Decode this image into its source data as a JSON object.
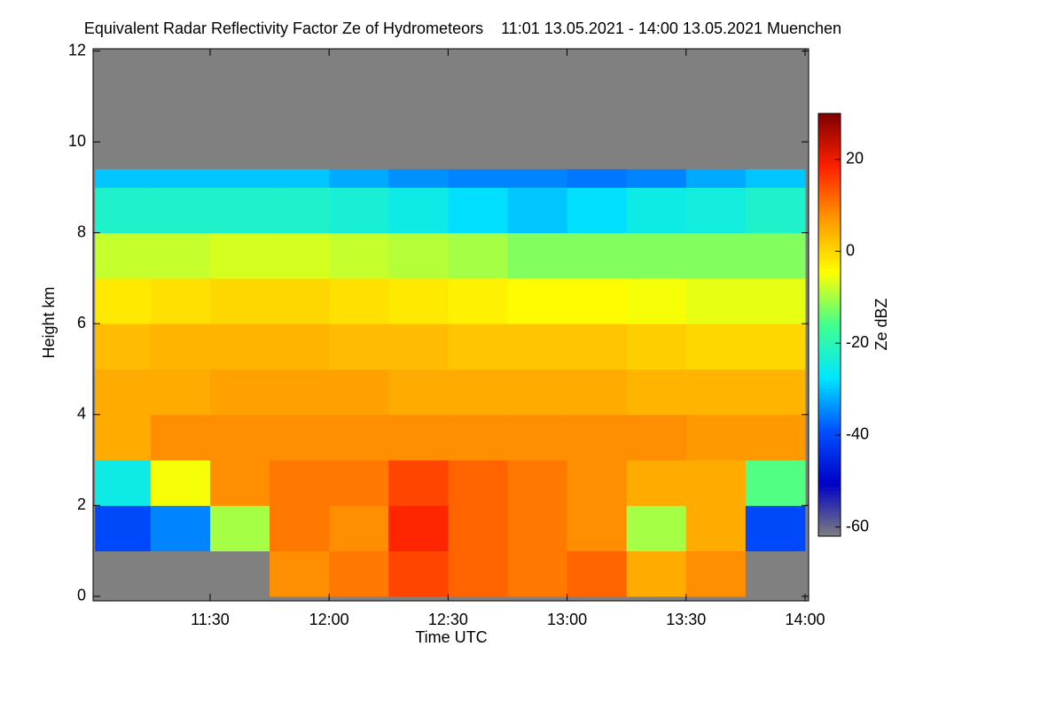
{
  "chart_data": {
    "type": "heatmap",
    "title": "Equivalent Radar Reflectivity Factor Ze of Hydrometeors    11:01 13.05.2021 - 14:00 13.05.2021 Muenchen",
    "xlabel": "Time UTC",
    "ylabel": "Height km",
    "colorbar_label": "Ze dBZ",
    "xlim": [
      660.5,
      840.9
    ],
    "xticks": [
      {
        "value": 690,
        "label": "11:30"
      },
      {
        "value": 720,
        "label": "12:00"
      },
      {
        "value": 750,
        "label": "12:30"
      },
      {
        "value": 780,
        "label": "13:00"
      },
      {
        "value": 810,
        "label": "13:30"
      },
      {
        "value": 840,
        "label": "14:00"
      }
    ],
    "ylim": [
      -0.1,
      12.05
    ],
    "yticks": [
      0,
      2,
      4,
      6,
      8,
      10,
      12
    ],
    "zlim": [
      -62,
      30
    ],
    "zticks": [
      -60,
      -40,
      -20,
      0,
      20
    ],
    "colormap": [
      "#7f7f7f",
      "#0000c8",
      "#0050ff",
      "#00e5ff",
      "#40ff90",
      "#ffff00",
      "#ff9900",
      "#ff2000",
      "#800000"
    ],
    "null_color": "#808080",
    "x_edges": [
      661,
      675,
      690,
      705,
      720,
      735,
      750,
      765,
      780,
      795,
      810,
      825,
      840
    ],
    "y_edges": [
      0,
      1,
      2,
      3,
      4,
      5,
      6,
      7,
      8,
      9,
      9.4
    ],
    "z": [
      [
        null,
        null,
        null,
        8,
        10,
        15,
        12,
        10,
        12,
        5,
        8,
        null
      ],
      [
        -40,
        -35,
        -10,
        10,
        8,
        18,
        12,
        10,
        8,
        -10,
        5,
        -40
      ],
      [
        -25,
        -5,
        8,
        10,
        10,
        15,
        12,
        10,
        8,
        5,
        5,
        -15
      ],
      [
        5,
        8,
        8,
        8,
        8,
        8,
        8,
        8,
        8,
        8,
        7,
        7
      ],
      [
        5,
        5,
        6,
        6,
        6,
        5,
        5,
        5,
        5,
        4,
        4,
        4
      ],
      [
        3,
        4,
        4,
        4,
        3,
        3,
        2,
        2,
        2,
        1,
        0,
        0
      ],
      [
        -2,
        -1,
        0,
        0,
        -1,
        -2,
        -3,
        -4,
        -4,
        -5,
        -6,
        -6
      ],
      [
        -8,
        -8,
        -7,
        -7,
        -8,
        -9,
        -10,
        -12,
        -12,
        -12,
        -12,
        -12
      ],
      [
        -22,
        -22,
        -22,
        -22,
        -23,
        -25,
        -28,
        -30,
        -28,
        -25,
        -24,
        -22
      ],
      [
        -30,
        -30,
        -30,
        -30,
        -32,
        -34,
        -35,
        -35,
        -36,
        -35,
        -32,
        -30
      ]
    ]
  }
}
